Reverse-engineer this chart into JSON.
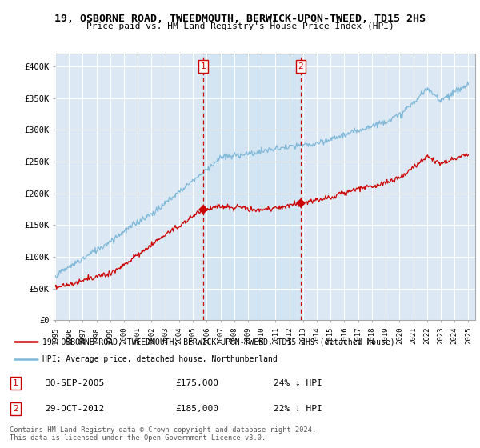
{
  "title": "19, OSBORNE ROAD, TWEEDMOUTH, BERWICK-UPON-TWEED, TD15 2HS",
  "subtitle": "Price paid vs. HM Land Registry's House Price Index (HPI)",
  "background_color": "#ffffff",
  "plot_bg_color": "#dce9f5",
  "ylim": [
    0,
    420000
  ],
  "yticks": [
    0,
    50000,
    100000,
    150000,
    200000,
    250000,
    300000,
    350000,
    400000
  ],
  "ytick_labels": [
    "£0",
    "£50K",
    "£100K",
    "£150K",
    "£200K",
    "£250K",
    "£300K",
    "£350K",
    "£400K"
  ],
  "xlim_start": 1995,
  "xlim_end": 2025.5,
  "hpi_color": "#7fb8d8",
  "price_color": "#cc0000",
  "marker1_date": 2005.75,
  "marker1_price": 175000,
  "marker2_date": 2012.83,
  "marker2_price": 185000,
  "legend_line1": "19, OSBORNE ROAD, TWEEDMOUTH, BERWICK-UPON-TWEED, TD15 2HS (detached house)",
  "legend_line2": "HPI: Average price, detached house, Northumberland",
  "annotation1_date": "30-SEP-2005",
  "annotation1_price": "£175,000",
  "annotation1_pct": "24% ↓ HPI",
  "annotation2_date": "29-OCT-2012",
  "annotation2_price": "£185,000",
  "annotation2_pct": "22% ↓ HPI",
  "footnote_line1": "Contains HM Land Registry data © Crown copyright and database right 2024.",
  "footnote_line2": "This data is licensed under the Open Government Licence v3.0."
}
